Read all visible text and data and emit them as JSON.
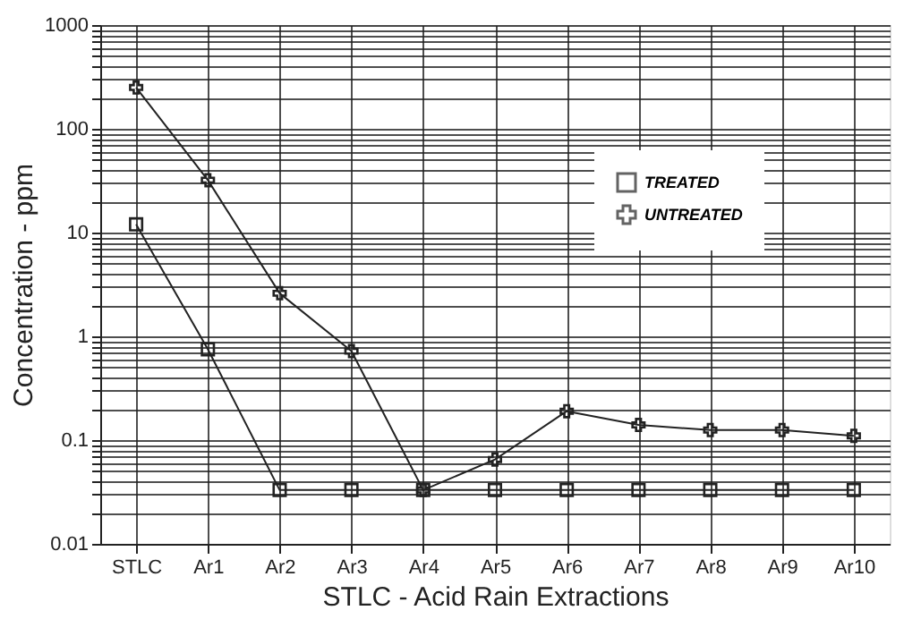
{
  "chart_data": {
    "type": "line",
    "xlabel": "STLC - Acid Rain Extractions",
    "ylabel": "Concentration - ppm",
    "categories": [
      "STLC",
      "Ar1",
      "Ar2",
      "Ar3",
      "Ar4",
      "Ar5",
      "Ar6",
      "Ar7",
      "Ar8",
      "Ar9",
      "Ar10"
    ],
    "series": [
      {
        "name": "TREATED",
        "color": "#222222",
        "marker": "square",
        "values": [
          12,
          0.75,
          0.033,
          0.033,
          0.033,
          0.033,
          0.033,
          0.033,
          0.033,
          0.033,
          0.033
        ]
      },
      {
        "name": "UNTREATED",
        "color": "#222222",
        "marker": "cross",
        "values": [
          250,
          32,
          2.6,
          0.72,
          0.033,
          0.065,
          0.19,
          0.14,
          0.125,
          0.125,
          0.11
        ]
      }
    ],
    "log": "y",
    "ylim": [
      0.01,
      1000
    ],
    "yticks": [
      0.01,
      {
        "value": 0.02,
        "label": null
      },
      {
        "value": 0.03,
        "label": null
      },
      {
        "value": 0.04,
        "label": null
      },
      {
        "value": 0.05,
        "label": null
      },
      {
        "value": 0.06,
        "label": null
      },
      {
        "value": 0.07,
        "label": null
      },
      {
        "value": 0.08,
        "label": null
      },
      {
        "value": 0.09,
        "label": null
      },
      0.1,
      {
        "value": 0.2,
        "label": null
      },
      {
        "value": 0.3,
        "label": null
      },
      {
        "value": 0.4,
        "label": null
      },
      {
        "value": 0.5,
        "label": null
      },
      {
        "value": 0.6,
        "label": null
      },
      {
        "value": 0.7,
        "label": null
      },
      {
        "value": 0.8,
        "label": null
      },
      {
        "value": 0.9,
        "label": null
      },
      1,
      {
        "value": 2,
        "label": null
      },
      {
        "value": 3,
        "label": null
      },
      {
        "value": 4,
        "label": null
      },
      {
        "value": 5,
        "label": null
      },
      {
        "value": 6,
        "label": null
      },
      {
        "value": 7,
        "label": null
      },
      {
        "value": 8,
        "label": null
      },
      {
        "value": 9,
        "label": null
      },
      10,
      {
        "value": 20,
        "label": null
      },
      {
        "value": 30,
        "label": null
      },
      {
        "value": 40,
        "label": null
      },
      {
        "value": 50,
        "label": null
      },
      {
        "value": 60,
        "label": null
      },
      {
        "value": 70,
        "label": null
      },
      {
        "value": 80,
        "label": null
      },
      {
        "value": 90,
        "label": null
      },
      100,
      {
        "value": 200,
        "label": null
      },
      {
        "value": 300,
        "label": null
      },
      {
        "value": 400,
        "label": null
      },
      {
        "value": 500,
        "label": null
      },
      {
        "value": 600,
        "label": null
      },
      {
        "value": 700,
        "label": null
      },
      {
        "value": 800,
        "label": null
      },
      {
        "value": 900,
        "label": null
      },
      1000
    ],
    "grid": true,
    "legend": "top right",
    "line_style": "solid"
  }
}
